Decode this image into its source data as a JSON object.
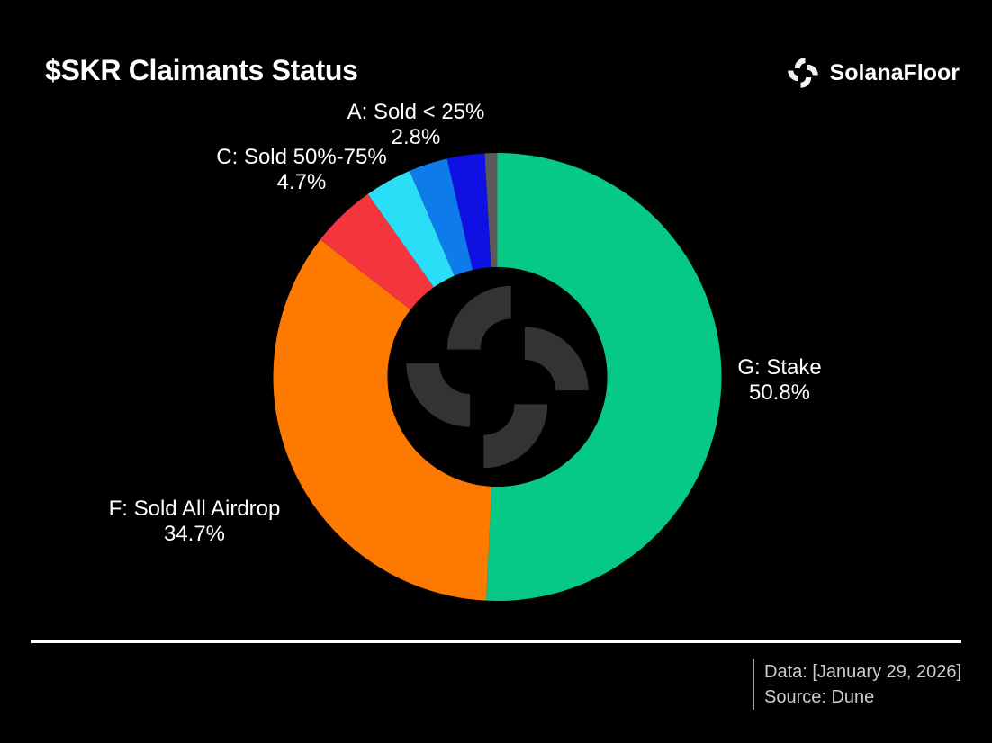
{
  "header": {
    "title": "$SKR Claimants Status",
    "brand": "SolanaFloor"
  },
  "chart_data": {
    "type": "pie",
    "title": "$SKR Claimants Status",
    "donut": true,
    "donut_hole_ratio": 0.49,
    "start_angle_deg": 0,
    "direction": "clockwise",
    "background": "#000000",
    "legend_position": "none",
    "segments": [
      {
        "label": "G: Stake",
        "pct_label": "50.8%",
        "value": 50.8,
        "color": "#06c985",
        "labeled": true
      },
      {
        "label": "F: Sold All Airdrop",
        "pct_label": "34.7%",
        "value": 34.7,
        "color": "#fe7900",
        "labeled": true
      },
      {
        "label": "C: Sold 50%-75%",
        "pct_label": "4.7%",
        "value": 4.7,
        "color": "#f4353e",
        "labeled": true
      },
      {
        "label": "",
        "pct_label": "",
        "value": 3.4,
        "color": "#29def6",
        "labeled": false,
        "estimated": true
      },
      {
        "label": "A: Sold < 25%",
        "pct_label": "2.8%",
        "value": 2.8,
        "color": "#0d7cea",
        "labeled": true
      },
      {
        "label": "",
        "pct_label": "",
        "value": 2.7,
        "color": "#0e11e2",
        "labeled": false,
        "estimated": true
      },
      {
        "label": "",
        "pct_label": "",
        "value": 0.9,
        "color": "#5a5a5a",
        "labeled": false,
        "estimated": true
      }
    ]
  },
  "watermark": {
    "icon": "solanafloor-pinwheel",
    "color": "#333333"
  },
  "footer": {
    "data_line": "Data: [January 29, 2026]",
    "source_line": "Source: Dune"
  }
}
